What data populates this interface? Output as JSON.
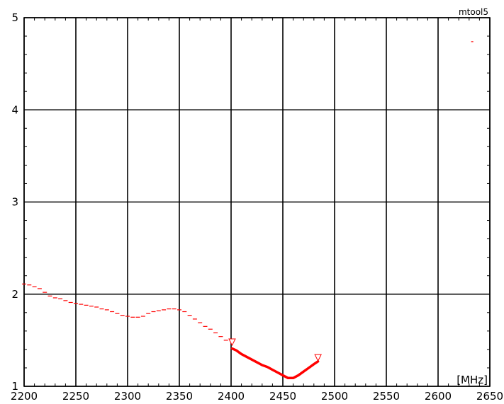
{
  "tool_label": "mtool5",
  "unit_label": "[MHz]",
  "chart_data": {
    "type": "line",
    "title": "",
    "xlabel": "[MHz]",
    "ylabel": "",
    "xlim": [
      2200,
      2650
    ],
    "ylim": [
      1,
      5
    ],
    "x_ticks": [
      2200,
      2250,
      2300,
      2350,
      2400,
      2450,
      2500,
      2550,
      2600,
      2650
    ],
    "y_ticks": [
      1,
      2,
      3,
      4,
      5
    ],
    "grid": true,
    "line_color": "#ff0000",
    "series": [
      {
        "style": "sparse-dashed",
        "points": [
          [
            2200,
            2.11
          ],
          [
            2205,
            2.1
          ],
          [
            2210,
            2.08
          ],
          [
            2215,
            2.06
          ],
          [
            2220,
            2.02
          ],
          [
            2225,
            1.98
          ],
          [
            2230,
            1.96
          ],
          [
            2235,
            1.95
          ],
          [
            2240,
            1.93
          ],
          [
            2245,
            1.91
          ],
          [
            2250,
            1.9
          ],
          [
            2255,
            1.89
          ],
          [
            2260,
            1.88
          ],
          [
            2265,
            1.87
          ],
          [
            2270,
            1.86
          ],
          [
            2275,
            1.84
          ],
          [
            2280,
            1.83
          ],
          [
            2285,
            1.81
          ],
          [
            2290,
            1.79
          ],
          [
            2295,
            1.77
          ],
          [
            2300,
            1.76
          ],
          [
            2305,
            1.75
          ],
          [
            2310,
            1.75
          ],
          [
            2315,
            1.76
          ],
          [
            2320,
            1.79
          ],
          [
            2325,
            1.81
          ],
          [
            2330,
            1.82
          ],
          [
            2335,
            1.83
          ],
          [
            2340,
            1.84
          ],
          [
            2345,
            1.84
          ],
          [
            2350,
            1.83
          ],
          [
            2355,
            1.81
          ],
          [
            2360,
            1.77
          ],
          [
            2365,
            1.73
          ],
          [
            2370,
            1.69
          ],
          [
            2375,
            1.65
          ],
          [
            2380,
            1.62
          ],
          [
            2385,
            1.58
          ],
          [
            2390,
            1.54
          ],
          [
            2395,
            1.5
          ]
        ]
      },
      {
        "style": "thick-solid",
        "points": [
          [
            2401,
            1.41
          ],
          [
            2405,
            1.39
          ],
          [
            2410,
            1.35
          ],
          [
            2415,
            1.32
          ],
          [
            2420,
            1.29
          ],
          [
            2425,
            1.26
          ],
          [
            2430,
            1.23
          ],
          [
            2435,
            1.21
          ],
          [
            2440,
            1.18
          ],
          [
            2445,
            1.15
          ],
          [
            2450,
            1.12
          ],
          [
            2455,
            1.09
          ],
          [
            2460,
            1.09
          ],
          [
            2465,
            1.12
          ],
          [
            2470,
            1.16
          ],
          [
            2475,
            1.2
          ],
          [
            2480,
            1.24
          ],
          [
            2484,
            1.27
          ]
        ]
      }
    ],
    "markers": [
      {
        "x": 2401,
        "y": 1.48,
        "shape": "triangle-down"
      },
      {
        "x": 2484,
        "y": 1.31,
        "shape": "triangle-down"
      }
    ],
    "outlier_points": [
      {
        "x": 2633,
        "y": 4.74
      }
    ]
  }
}
